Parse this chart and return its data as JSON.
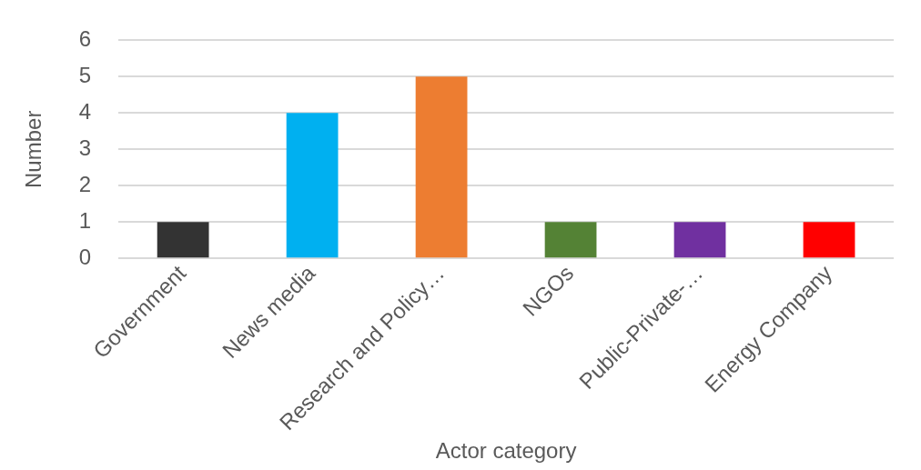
{
  "chart_data": {
    "type": "bar",
    "categories": [
      "Government",
      "News media",
      "Research and Policy…",
      "NGOs",
      "Public-Private-…",
      "Energy Company"
    ],
    "values": [
      1,
      4,
      5,
      1,
      1,
      1
    ],
    "colors": [
      "#333333",
      "#00b0f0",
      "#ed7d31",
      "#548235",
      "#7030a0",
      "#ff0000"
    ],
    "xlabel": "Actor category",
    "ylabel": "Number",
    "ylim": [
      0,
      6
    ],
    "yticks": [
      0,
      1,
      2,
      3,
      4,
      5,
      6
    ],
    "grid": "y",
    "legend": false
  }
}
